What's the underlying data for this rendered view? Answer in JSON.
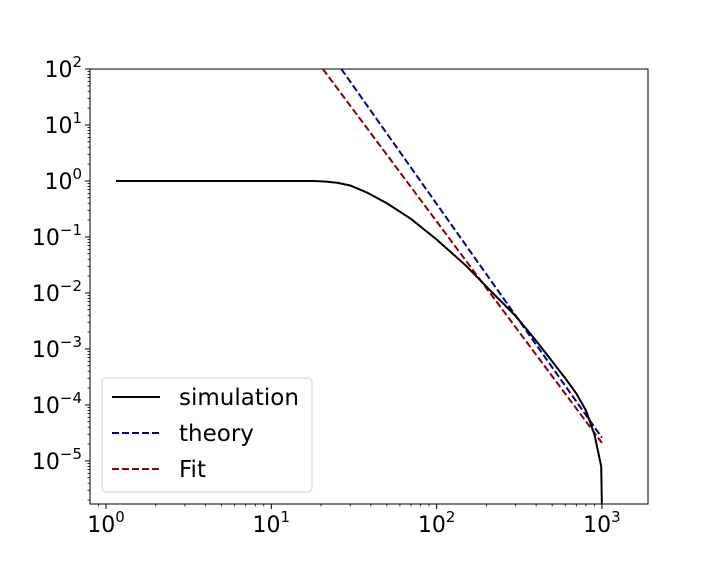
{
  "chart_data": {
    "type": "line",
    "title": "",
    "xlabel": "",
    "ylabel": "",
    "xscale": "log",
    "yscale": "log",
    "xlim": [
      0.8,
      1900
    ],
    "ylim": [
      1.7e-06,
      100
    ],
    "grid": false,
    "legend_position": "lower-left",
    "x_ticks": [
      {
        "value": 1,
        "base": "10",
        "exp": "0"
      },
      {
        "value": 10,
        "base": "10",
        "exp": "1"
      },
      {
        "value": 100,
        "base": "10",
        "exp": "2"
      },
      {
        "value": 1000,
        "base": "10",
        "exp": "3"
      }
    ],
    "y_ticks": [
      {
        "value": 100,
        "base": "10",
        "exp": "2"
      },
      {
        "value": 10,
        "base": "10",
        "exp": "1"
      },
      {
        "value": 1,
        "base": "10",
        "exp": "0"
      },
      {
        "value": 0.1,
        "base": "10",
        "exp": "−1"
      },
      {
        "value": 0.01,
        "base": "10",
        "exp": "−2"
      },
      {
        "value": 0.001,
        "base": "10",
        "exp": "−3"
      },
      {
        "value": 0.0001,
        "base": "10",
        "exp": "−4"
      },
      {
        "value": 1e-05,
        "base": "10",
        "exp": "−5"
      }
    ],
    "series": [
      {
        "name": "simulation",
        "color": "#000000",
        "dash": "solid",
        "points": [
          [
            1.15,
            1.0
          ],
          [
            3,
            1.0
          ],
          [
            10,
            1.0
          ],
          [
            18,
            1.0
          ],
          [
            21,
            0.98
          ],
          [
            25,
            0.93
          ],
          [
            30,
            0.83
          ],
          [
            38,
            0.62
          ],
          [
            50,
            0.4
          ],
          [
            70,
            0.21
          ],
          [
            100,
            0.09
          ],
          [
            150,
            0.031
          ],
          [
            200,
            0.013
          ],
          [
            300,
            0.0039
          ],
          [
            400,
            0.0014
          ],
          [
            500,
            0.0006
          ],
          [
            600,
            0.0003
          ],
          [
            700,
            0.00016
          ],
          [
            800,
            8e-05
          ],
          [
            900,
            3e-05
          ],
          [
            990,
            8e-06
          ],
          [
            1000,
            1.5e-06
          ]
        ]
      },
      {
        "name": "theory",
        "color": "#00008b",
        "dash": "dashed",
        "points": [
          [
            26.5,
            100
          ],
          [
            1000,
            2.6e-05
          ]
        ]
      },
      {
        "name": "Fit",
        "color": "#8b0000",
        "dash": "dashed",
        "points": [
          [
            20.5,
            100
          ],
          [
            1000,
            2.1e-05
          ]
        ]
      }
    ]
  }
}
